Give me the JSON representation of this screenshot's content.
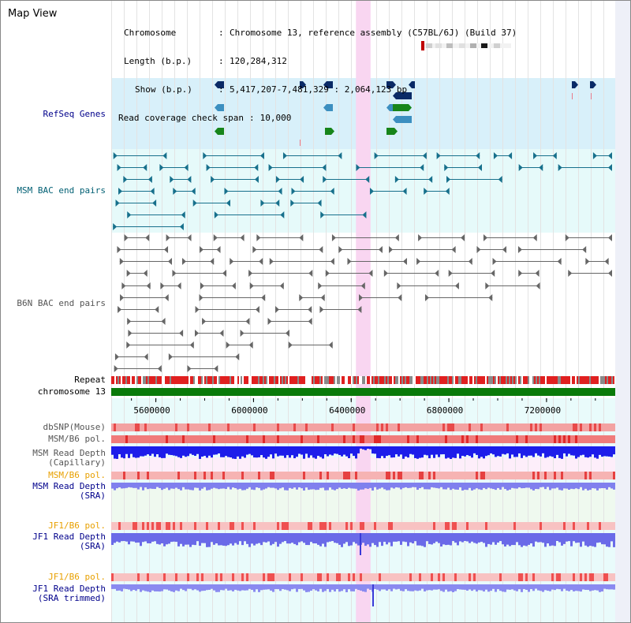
{
  "app_title": "Map View",
  "header": {
    "chromosome_key": "Chromosome",
    "chromosome_value": "Chromosome 13, reference assembly (C57BL/6J) (Build 37)",
    "length_key": "Length (b.p.)",
    "length_value": "120,284,312",
    "show_key": "Show (b.p.)",
    "show_value": "5,417,207-7,481,329 : 2,064,123 bp",
    "coverage_key": "Read coverage check span",
    "coverage_value": "10,000",
    "separator": ":"
  },
  "tracks": {
    "refseq": "RefSeq Genes",
    "msm_bac": "MSM BAC end pairs",
    "b6n_bac": "B6N BAC end pairs",
    "repeat": "Repeat",
    "chromosome": "chromosome 13",
    "dbsnp": "dbSNP(Mouse)",
    "msm_b6_pol_1": "MSM/B6 pol.",
    "msm_read_depth_cap": "MSM Read Depth\n(Capillary)",
    "msm_b6_pol_2": "MSM/B6 pol.",
    "msm_read_depth_sra": "MSM Read Depth\n(SRA)",
    "jf1_b6_pol_1": "JF1/B6 pol.",
    "jf1_read_depth_sra": "JF1 Read Depth\n(SRA)",
    "jf1_b6_pol_2": "JF1/B6 pol.",
    "jf1_read_depth_trim": "JF1 Read Depth\n(SRA trimmed)"
  },
  "axis": {
    "start_bp": 5417207,
    "end_bp": 7481329,
    "ticks": [
      {
        "value": 5600000,
        "label": "5600000"
      },
      {
        "value": 6000000,
        "label": "6000000"
      },
      {
        "value": 6400000,
        "label": "6400000"
      },
      {
        "value": 6800000,
        "label": "6800000"
      },
      {
        "value": 7200000,
        "label": "7200000"
      }
    ],
    "highlight_bp": [
      6400000,
      6460000
    ]
  },
  "colors": {
    "refseq_bg": "#d8f0fa",
    "msm_bg": "#e6fafa",
    "b6n_bg": "#ffffff",
    "lower_bg": "#e9fbfb",
    "highlight": "#f9d6f1",
    "refseq_dark": "#0a2a66",
    "refseq_mid": "#3c8fc0",
    "refseq_green": "#17851a",
    "msm_line": "#17708c",
    "b6n_line": "#666666",
    "chromosome": "#0a7a0a",
    "repeat_red": "#e02020",
    "repeat_gray": "#8a8a8a",
    "label_black": "#000000",
    "label_blue": "#00008b",
    "label_teal": "#005f73",
    "label_gray": "#555555",
    "label_orange": "#e8a000"
  }
}
